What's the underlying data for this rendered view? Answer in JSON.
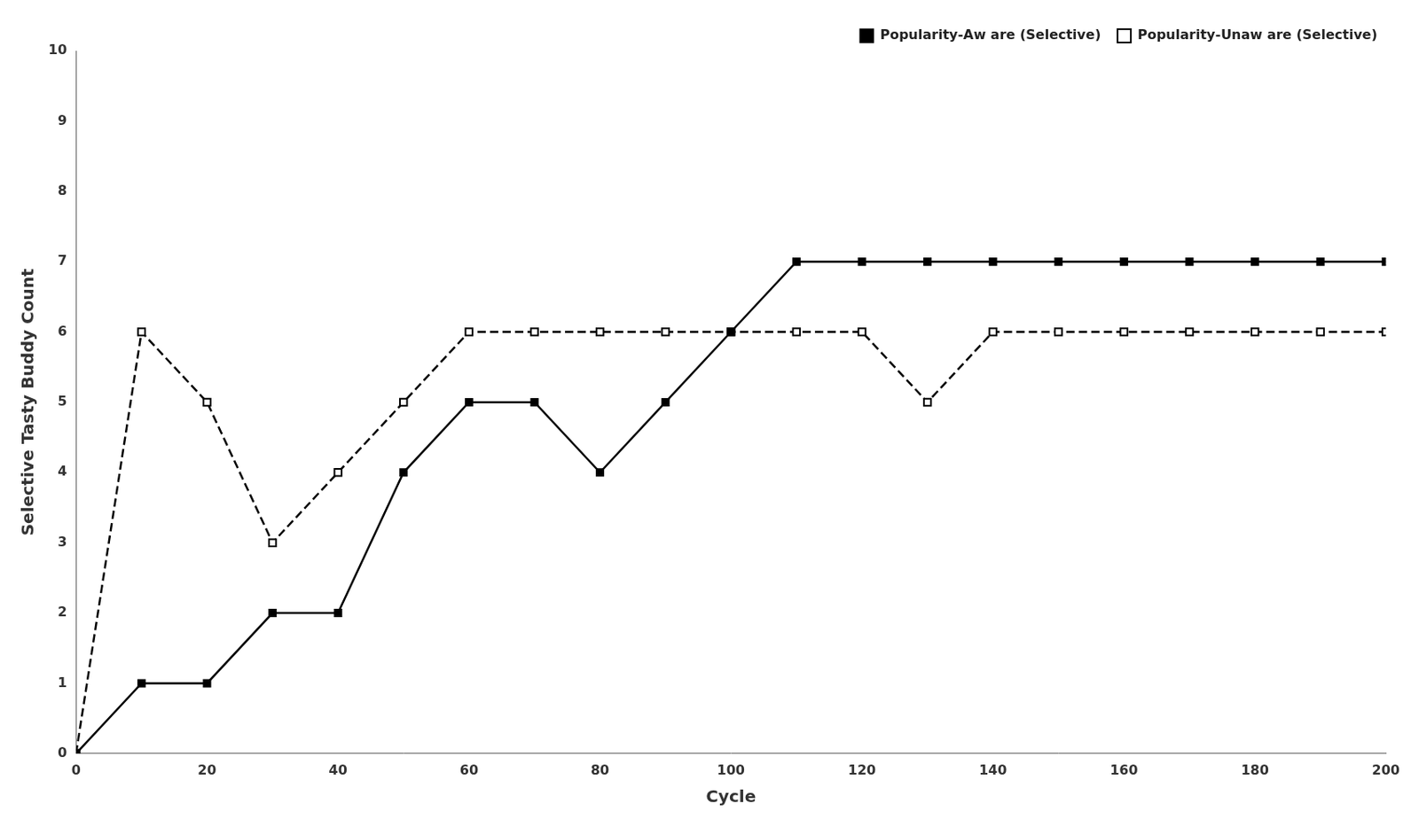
{
  "chart_data": {
    "type": "line",
    "x": [
      0,
      10,
      20,
      30,
      40,
      50,
      60,
      70,
      80,
      90,
      100,
      110,
      120,
      130,
      140,
      150,
      160,
      170,
      180,
      190,
      200
    ],
    "series": [
      {
        "name": "Popularity-Aw are (Selective)",
        "color": "#000000",
        "marker": "square",
        "line_style": "solid",
        "values": [
          0,
          1,
          1,
          2,
          2,
          4,
          5,
          5,
          4,
          5,
          6,
          7,
          7,
          7,
          7,
          7,
          7,
          7,
          7,
          7,
          7
        ]
      },
      {
        "name": "Popularity-Unaw are (Selective)",
        "color": "#000000",
        "marker": "open_square",
        "line_style": "dashed",
        "values": [
          0,
          6,
          5,
          3,
          4,
          5,
          6,
          6,
          6,
          6,
          6,
          6,
          6,
          5,
          6,
          6,
          6,
          6,
          6,
          6,
          6
        ]
      }
    ],
    "xlabel": "Cycle",
    "ylabel": "Selective Tasty Buddy Count",
    "xlim": [
      0,
      200
    ],
    "ylim": [
      0,
      10
    ],
    "xticks": [
      0,
      20,
      40,
      60,
      80,
      100,
      120,
      140,
      160,
      180,
      200
    ],
    "yticks": [
      0,
      1,
      2,
      3,
      4,
      5,
      6,
      7,
      8,
      9,
      10
    ],
    "grid": false,
    "legend": "upper right"
  }
}
